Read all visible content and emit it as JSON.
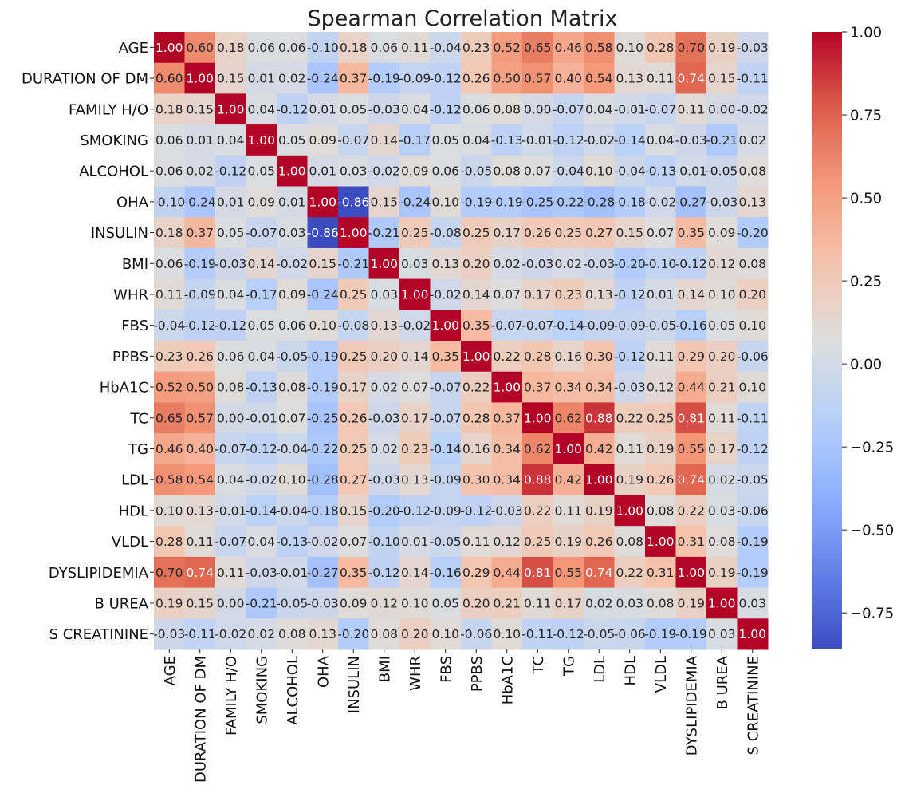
{
  "chart_data": {
    "type": "heatmap",
    "title": "Spearman Correlation Matrix",
    "labels": [
      "AGE",
      "DURATION OF DM",
      "FAMILY H/O",
      "SMOKING",
      "ALCOHOL",
      "OHA",
      "INSULIN",
      "BMI",
      "WHR",
      "FBS",
      "PPBS",
      "HbA1C",
      "TC",
      "TG",
      "LDL",
      "HDL",
      "VLDL",
      "DYSLIPIDEMIA",
      "B UREA",
      "S CREATININE"
    ],
    "values": [
      [
        1.0,
        0.6,
        0.18,
        0.06,
        0.06,
        -0.1,
        0.18,
        0.06,
        0.11,
        -0.04,
        0.23,
        0.52,
        0.65,
        0.46,
        0.58,
        0.1,
        0.28,
        0.7,
        0.19,
        -0.03
      ],
      [
        0.6,
        1.0,
        0.15,
        0.01,
        0.02,
        -0.24,
        0.37,
        -0.19,
        -0.09,
        -0.12,
        0.26,
        0.5,
        0.57,
        0.4,
        0.54,
        0.13,
        0.11,
        0.74,
        0.15,
        -0.11
      ],
      [
        0.18,
        0.15,
        1.0,
        0.04,
        -0.12,
        0.01,
        0.05,
        -0.03,
        0.04,
        -0.12,
        0.06,
        0.08,
        0.0,
        -0.07,
        0.04,
        -0.01,
        -0.07,
        0.11,
        0.0,
        -0.02
      ],
      [
        0.06,
        0.01,
        0.04,
        1.0,
        0.05,
        0.09,
        -0.07,
        0.14,
        -0.17,
        0.05,
        0.04,
        -0.13,
        -0.01,
        -0.12,
        -0.02,
        -0.14,
        0.04,
        -0.03,
        -0.21,
        0.02
      ],
      [
        0.06,
        0.02,
        -0.12,
        0.05,
        1.0,
        0.01,
        0.03,
        -0.02,
        0.09,
        0.06,
        -0.05,
        0.08,
        0.07,
        -0.04,
        0.1,
        -0.04,
        -0.13,
        -0.01,
        -0.05,
        0.08
      ],
      [
        -0.1,
        -0.24,
        0.01,
        0.09,
        0.01,
        1.0,
        -0.86,
        0.15,
        -0.24,
        0.1,
        -0.19,
        -0.19,
        -0.25,
        -0.22,
        -0.28,
        -0.18,
        -0.02,
        -0.27,
        -0.03,
        0.13
      ],
      [
        0.18,
        0.37,
        0.05,
        -0.07,
        0.03,
        -0.86,
        1.0,
        -0.21,
        0.25,
        -0.08,
        0.25,
        0.17,
        0.26,
        0.25,
        0.27,
        0.15,
        0.07,
        0.35,
        0.09,
        -0.2
      ],
      [
        0.06,
        -0.19,
        -0.03,
        0.14,
        -0.02,
        0.15,
        -0.21,
        1.0,
        0.03,
        0.13,
        0.2,
        0.02,
        -0.03,
        0.02,
        -0.03,
        -0.2,
        -0.1,
        -0.12,
        0.12,
        0.08
      ],
      [
        0.11,
        -0.09,
        0.04,
        -0.17,
        0.09,
        -0.24,
        0.25,
        0.03,
        1.0,
        -0.02,
        0.14,
        0.07,
        0.17,
        0.23,
        0.13,
        -0.12,
        0.01,
        0.14,
        0.1,
        0.2
      ],
      [
        -0.04,
        -0.12,
        -0.12,
        0.05,
        0.06,
        0.1,
        -0.08,
        0.13,
        -0.02,
        1.0,
        0.35,
        -0.07,
        -0.07,
        -0.14,
        -0.09,
        -0.09,
        -0.05,
        -0.16,
        0.05,
        0.1
      ],
      [
        0.23,
        0.26,
        0.06,
        0.04,
        -0.05,
        -0.19,
        0.25,
        0.2,
        0.14,
        0.35,
        1.0,
        0.22,
        0.28,
        0.16,
        0.3,
        -0.12,
        0.11,
        0.29,
        0.2,
        -0.06
      ],
      [
        0.52,
        0.5,
        0.08,
        -0.13,
        0.08,
        -0.19,
        0.17,
        0.02,
        0.07,
        -0.07,
        0.22,
        1.0,
        0.37,
        0.34,
        0.34,
        -0.03,
        0.12,
        0.44,
        0.21,
        0.1
      ],
      [
        0.65,
        0.57,
        0.0,
        -0.01,
        0.07,
        -0.25,
        0.26,
        -0.03,
        0.17,
        -0.07,
        0.28,
        0.37,
        1.0,
        0.62,
        0.88,
        0.22,
        0.25,
        0.81,
        0.11,
        -0.11
      ],
      [
        0.46,
        0.4,
        -0.07,
        -0.12,
        -0.04,
        -0.22,
        0.25,
        0.02,
        0.23,
        -0.14,
        0.16,
        0.34,
        0.62,
        1.0,
        0.42,
        0.11,
        0.19,
        0.55,
        0.17,
        -0.12
      ],
      [
        0.58,
        0.54,
        0.04,
        -0.02,
        0.1,
        -0.28,
        0.27,
        -0.03,
        0.13,
        -0.09,
        0.3,
        0.34,
        0.88,
        0.42,
        1.0,
        0.19,
        0.26,
        0.74,
        0.02,
        -0.05
      ],
      [
        0.1,
        0.13,
        -0.01,
        -0.14,
        -0.04,
        -0.18,
        0.15,
        -0.2,
        -0.12,
        -0.09,
        -0.12,
        -0.03,
        0.22,
        0.11,
        0.19,
        1.0,
        0.08,
        0.22,
        0.03,
        -0.06
      ],
      [
        0.28,
        0.11,
        -0.07,
        0.04,
        -0.13,
        -0.02,
        0.07,
        -0.1,
        0.01,
        -0.05,
        0.11,
        0.12,
        0.25,
        0.19,
        0.26,
        0.08,
        1.0,
        0.31,
        0.08,
        -0.19
      ],
      [
        0.7,
        0.74,
        0.11,
        -0.03,
        -0.01,
        -0.27,
        0.35,
        -0.12,
        0.14,
        -0.16,
        0.29,
        0.44,
        0.81,
        0.55,
        0.74,
        0.22,
        0.31,
        1.0,
        0.19,
        -0.19
      ],
      [
        0.19,
        0.15,
        0.0,
        -0.21,
        -0.05,
        -0.03,
        0.09,
        0.12,
        0.1,
        0.05,
        0.2,
        0.21,
        0.11,
        0.17,
        0.02,
        0.03,
        0.08,
        0.19,
        1.0,
        0.03
      ],
      [
        -0.03,
        -0.11,
        -0.02,
        0.02,
        0.08,
        0.13,
        -0.2,
        0.08,
        0.2,
        0.1,
        -0.06,
        0.1,
        -0.11,
        -0.12,
        -0.05,
        -0.06,
        -0.19,
        -0.19,
        0.03,
        1.0
      ]
    ],
    "colormap": "coolwarm",
    "vmin": -0.86,
    "vmax": 1.0,
    "colorbar_ticks": [
      "1.00",
      "0.75",
      "0.50",
      "0.25",
      "0.00",
      "−0.25",
      "−0.50",
      "−0.75"
    ],
    "colorbar_tick_values": [
      1.0,
      0.75,
      0.5,
      0.25,
      0.0,
      -0.25,
      -0.5,
      -0.75
    ],
    "annotation_format": "0.00",
    "legend_position": "right"
  }
}
